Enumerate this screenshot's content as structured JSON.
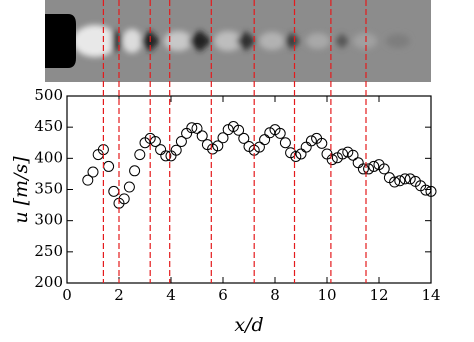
{
  "chart_data": {
    "type": "scatter",
    "xlabel": "x/d",
    "ylabel": "u [m/s]",
    "xlim": [
      0,
      14
    ],
    "xticks": [
      0,
      2,
      4,
      6,
      8,
      10,
      12,
      14
    ],
    "ylim": [
      200,
      500
    ],
    "yticks": [
      200,
      250,
      300,
      350,
      400,
      450,
      500
    ],
    "color": "#000000",
    "vline_color": "#e41a1c",
    "vlines": [
      1.4,
      2.0,
      3.2,
      3.95,
      5.55,
      7.2,
      8.75,
      10.15,
      11.5
    ],
    "x": [
      0.8,
      1.0,
      1.2,
      1.4,
      1.6,
      1.8,
      2.0,
      2.2,
      2.4,
      2.6,
      2.8,
      3.0,
      3.2,
      3.4,
      3.6,
      3.8,
      4.0,
      4.2,
      4.4,
      4.6,
      4.8,
      5.0,
      5.2,
      5.4,
      5.6,
      5.8,
      6.0,
      6.2,
      6.4,
      6.6,
      6.8,
      7.0,
      7.2,
      7.4,
      7.6,
      7.8,
      8.0,
      8.2,
      8.4,
      8.6,
      8.8,
      9.0,
      9.2,
      9.4,
      9.6,
      9.8,
      10.0,
      10.2,
      10.4,
      10.6,
      10.8,
      11.0,
      11.2,
      11.4,
      11.6,
      11.8,
      12.0,
      12.2,
      12.4,
      12.6,
      12.8,
      13.0,
      13.2,
      13.4,
      13.6,
      13.8,
      14.0
    ],
    "values": [
      365,
      378,
      406,
      414,
      387,
      347,
      328,
      335,
      354,
      380,
      406,
      425,
      432,
      427,
      414,
      404,
      404,
      413,
      427,
      440,
      449,
      448,
      436,
      422,
      415,
      420,
      433,
      446,
      451,
      445,
      432,
      419,
      413,
      418,
      430,
      441,
      446,
      440,
      425,
      409,
      403,
      407,
      418,
      428,
      432,
      424,
      407,
      398,
      401,
      407,
      410,
      405,
      393,
      383,
      383,
      387,
      390,
      383,
      369,
      362,
      364,
      367,
      367,
      363,
      356,
      349,
      347
    ]
  }
}
